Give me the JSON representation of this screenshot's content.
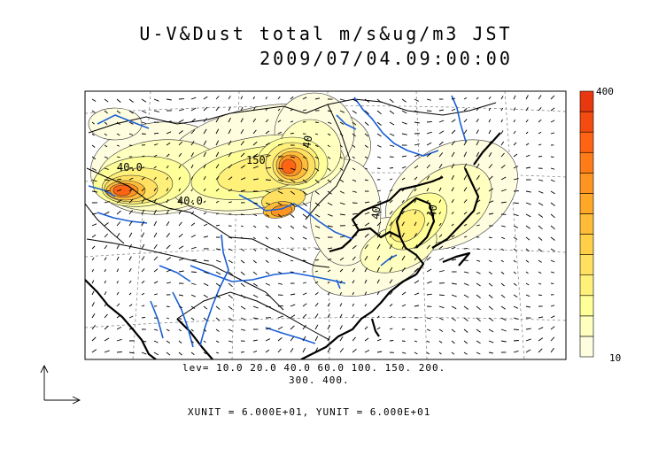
{
  "title_line1": "U-V&Dust total m/s&ug/m3 JST",
  "title_line2": "2009/07/04.09:00:00",
  "colorbar": {
    "max_label": "400",
    "min_label": "10",
    "colors": [
      "#fffde0",
      "#ffffc0",
      "#ffff9a",
      "#fff07a",
      "#ffe060",
      "#ffcf48",
      "#ffbc38",
      "#ffa828",
      "#ff9420",
      "#ff7c18",
      "#ff6414",
      "#f44c10",
      "#e83810"
    ]
  },
  "contour_labels": [
    "40.0",
    "150",
    "40.0",
    "40",
    "40",
    "40"
  ],
  "footer": {
    "levels_line1": "lev= 10.0 20.0 40.0 60.0 100. 150. 200.",
    "levels_line2": "300. 400.",
    "units": "XUNIT = 6.000E+01, YUNIT = 6.000E+01"
  },
  "chart_data": {
    "type": "heatmap",
    "title": "U-V&Dust total m/s&ug/m3 JST",
    "subtitle": "2009/07/04.09:00:00",
    "contour_levels": [
      10,
      20,
      40,
      60,
      100,
      150,
      200,
      300,
      400
    ],
    "colorbar_range": [
      10,
      400
    ],
    "vector_units": {
      "x": 60,
      "y": 60
    }
  }
}
